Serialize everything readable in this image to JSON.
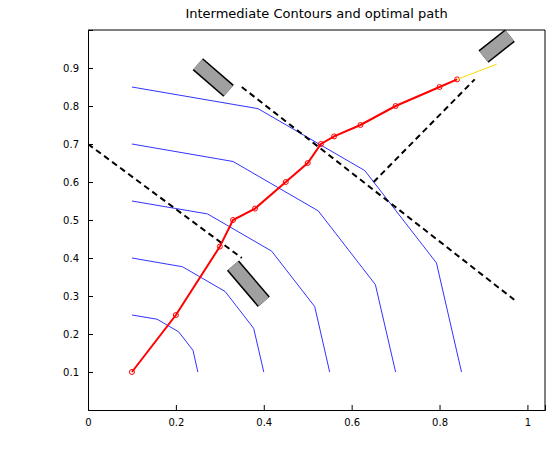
{
  "chart_data": {
    "type": "line",
    "title": "Intermediate Contours and optimal path",
    "xlim": [
      0,
      1.04
    ],
    "ylim": [
      0,
      1
    ],
    "xticks": [
      0,
      0.2,
      0.4,
      0.6,
      0.8,
      1
    ],
    "yticks": [
      0.1,
      0.2,
      0.3,
      0.4,
      0.5,
      0.6,
      0.7,
      0.8,
      0.9
    ],
    "grid": false,
    "series": [
      {
        "type": "line",
        "color": "#3333ff",
        "line_style": "solid",
        "x": [
          0.25,
          0.239,
          0.206,
          0.157,
          0.1
        ],
        "values": [
          0.1,
          0.157,
          0.206,
          0.239,
          0.25
        ]
      },
      {
        "type": "line",
        "color": "#3333ff",
        "line_style": "solid",
        "x": [
          0.4,
          0.377,
          0.312,
          0.215,
          0.1
        ],
        "values": [
          0.1,
          0.215,
          0.312,
          0.377,
          0.4
        ]
      },
      {
        "type": "line",
        "color": "#3333ff",
        "line_style": "solid",
        "x": [
          0.55,
          0.516,
          0.418,
          0.272,
          0.1
        ],
        "values": [
          0.1,
          0.272,
          0.418,
          0.516,
          0.55
        ]
      },
      {
        "type": "line",
        "color": "#3333ff",
        "line_style": "solid",
        "x": [
          0.7,
          0.654,
          0.524,
          0.33,
          0.1
        ],
        "values": [
          0.1,
          0.33,
          0.524,
          0.654,
          0.7
        ]
      },
      {
        "type": "line",
        "color": "#3333ff",
        "line_style": "solid",
        "x": [
          0.85,
          0.793,
          0.63,
          0.387,
          0.1
        ],
        "values": [
          0.1,
          0.387,
          0.63,
          0.793,
          0.85
        ]
      },
      {
        "type": "line",
        "color": "#000000",
        "line_style": "dashed",
        "x": [
          0,
          0.35
        ],
        "values": [
          0.7,
          0.4
        ]
      },
      {
        "type": "line",
        "color": "#000000",
        "line_style": "dashed",
        "x": [
          0.35,
          0.97
        ],
        "values": [
          0.85,
          0.29
        ]
      },
      {
        "type": "line",
        "color": "#000000",
        "line_style": "dashed",
        "x": [
          0.65,
          0.88
        ],
        "values": [
          0.6,
          0.87
        ]
      },
      {
        "type": "line",
        "color": "#ff0000",
        "line_style": "solid",
        "marker": "circle",
        "x": [
          0.1,
          0.2,
          0.3,
          0.33,
          0.38,
          0.45,
          0.5,
          0.53,
          0.56,
          0.62,
          0.7,
          0.8,
          0.84
        ],
        "values": [
          0.1,
          0.25,
          0.43,
          0.5,
          0.53,
          0.6,
          0.65,
          0.7,
          0.72,
          0.75,
          0.8,
          0.85,
          0.87
        ]
      },
      {
        "type": "line",
        "color": "#ffd700",
        "line_style": "solid",
        "x": [
          0.84,
          0.93
        ],
        "values": [
          0.87,
          0.91
        ]
      },
      {
        "type": "obstacle",
        "color": "#a0a0a0",
        "x": [
          0.33,
          0.4
        ],
        "values": [
          0.38,
          0.285
        ]
      },
      {
        "type": "obstacle",
        "color": "#a0a0a0",
        "x": [
          0.25,
          0.32
        ],
        "values": [
          0.91,
          0.84
        ]
      },
      {
        "type": "obstacle",
        "color": "#a0a0a0",
        "x": [
          0.9,
          0.96
        ],
        "values": [
          0.93,
          0.985
        ]
      }
    ]
  }
}
